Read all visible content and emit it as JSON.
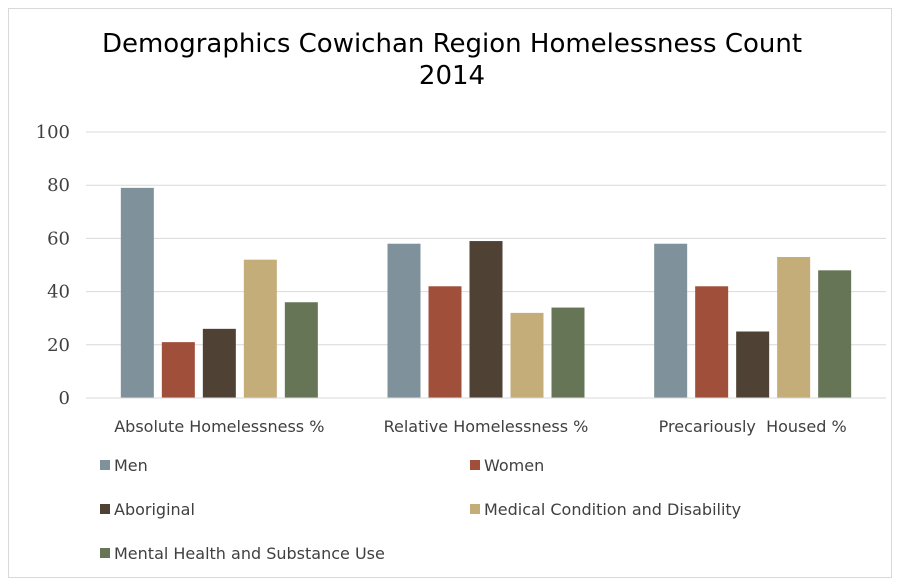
{
  "chart_data": {
    "type": "bar",
    "title": "Demographics Cowichan Region Homelessness Count",
    "subtitle": "2014",
    "categories": [
      "Absolute Homelessness %",
      "Relative Homelessness %",
      "Precariously  Housed %"
    ],
    "series": [
      {
        "name": "Men",
        "color": "#7f919a",
        "values": [
          79,
          58,
          58
        ]
      },
      {
        "name": "Women",
        "color": "#a0503a",
        "values": [
          21,
          42,
          42
        ]
      },
      {
        "name": "Aboriginal",
        "color": "#4f4234",
        "values": [
          26,
          59,
          25
        ]
      },
      {
        "name": "Medical Condition and Disability",
        "color": "#c4ad78",
        "values": [
          52,
          32,
          53
        ]
      },
      {
        "name": "Mental Health and Substance Use",
        "color": "#667556",
        "values": [
          36,
          34,
          48
        ]
      }
    ],
    "ylim": [
      0,
      100
    ],
    "yticks": [
      "0",
      "20",
      "40",
      "60",
      "80",
      "100"
    ],
    "grid": true,
    "legend_position": "bottom",
    "xlabel": "",
    "ylabel": ""
  }
}
